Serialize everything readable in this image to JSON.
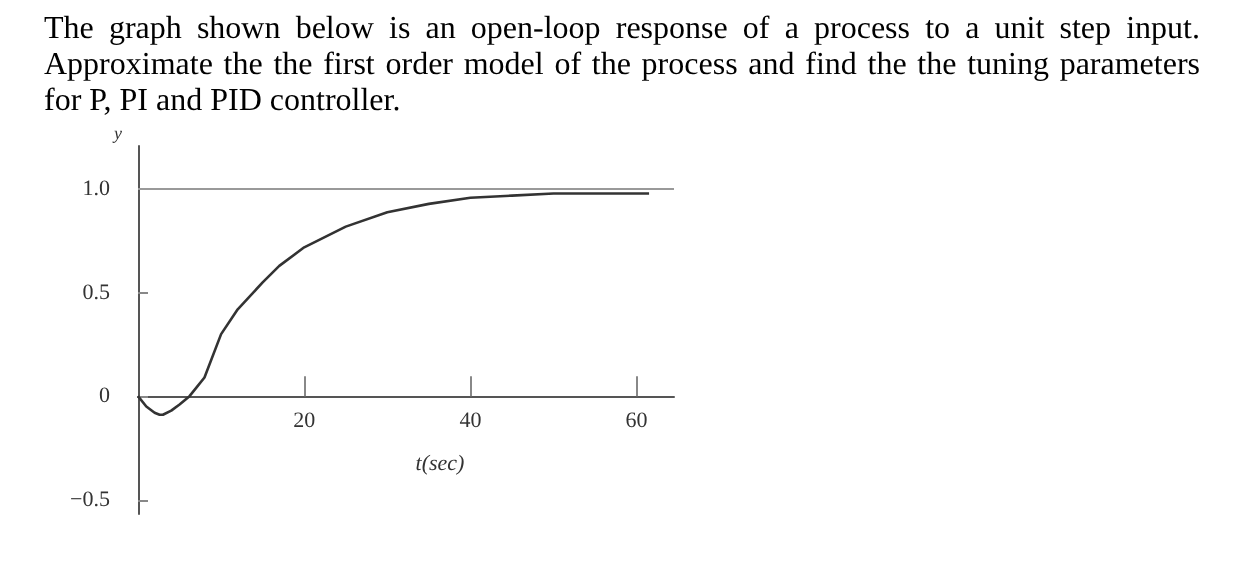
{
  "chart_data": {
    "type": "line",
    "title": "The graph shown below is an open-loop response of a process to a unit step input. Approximate the the first order model of the process and find the the tuning parameters for P, PI and PID controller.",
    "xlabel": "t(sec)",
    "ylabel": "y",
    "x": [
      0,
      1,
      2,
      2.6,
      3,
      4,
      5,
      6.2,
      7,
      8,
      10,
      12,
      15,
      17,
      20,
      25,
      30,
      35,
      40,
      45,
      50,
      55,
      61.5
    ],
    "series": [
      {
        "color": "#333333",
        "values": [
          0,
          -0.05,
          -0.08,
          -0.09,
          -0.09,
          -0.07,
          -0.04,
          0,
          0.04,
          0.09,
          0.3,
          0.42,
          0.55,
          0.63,
          0.72,
          0.82,
          0.89,
          0.93,
          0.96,
          0.97,
          0.98,
          0.98,
          0.98
        ]
      }
    ],
    "xlim": [
      0,
      64.5
    ],
    "xticks": [
      20,
      40,
      60
    ],
    "ylim": [
      -0.57,
      1.21
    ],
    "yticks": [
      {
        "value": -0.5,
        "label": "−0.5"
      },
      0,
      0.5,
      {
        "value": 1,
        "label": "1.0"
      }
    ],
    "ref_lines": [
      {
        "axis": "y",
        "value": 1,
        "color": "#999999"
      }
    ],
    "grid": false,
    "marker": "none",
    "line_style": "solid"
  }
}
